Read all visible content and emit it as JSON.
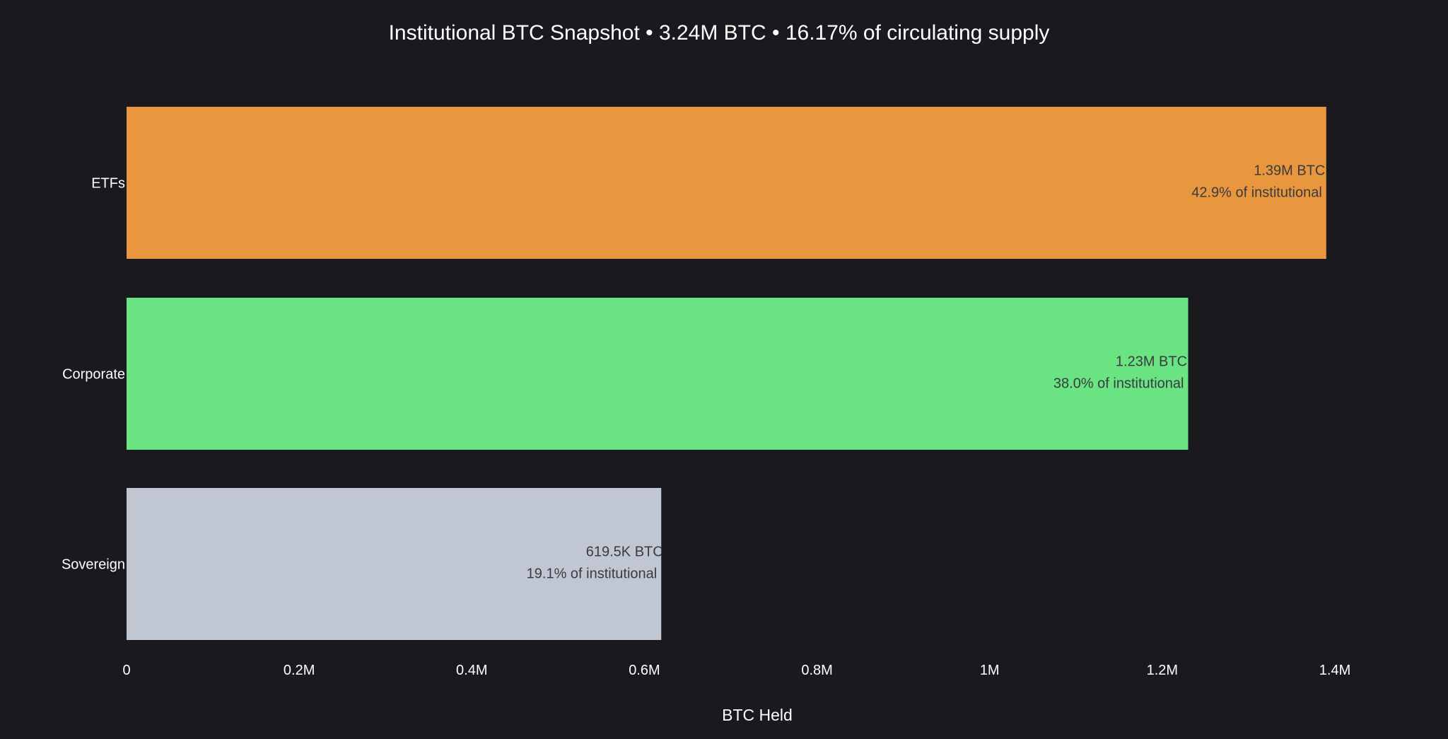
{
  "chart_data": {
    "type": "bar",
    "orientation": "horizontal",
    "title": "Institutional BTC Snapshot • 3.24M BTC • 16.17% of circulating supply",
    "xlabel": "BTC Held",
    "ylabel": "",
    "xlim": [
      0,
      1400000
    ],
    "grid": false,
    "legend": "none",
    "categories": [
      "ETFs",
      "Corporate",
      "Sovereign"
    ],
    "values": [
      1390000,
      1230000,
      619500
    ],
    "colors": [
      "#e8973e",
      "#6ae383",
      "#c1c7d2"
    ],
    "value_labels": [
      "1.39M BTC",
      "1.23M BTC",
      "619.5K BTC"
    ],
    "share_labels": [
      "42.9% of institutional",
      "38.0% of institutional",
      "19.1% of institutional"
    ],
    "x_ticks": [
      {
        "value": 0,
        "label": "0"
      },
      {
        "value": 200000,
        "label": "0.2M"
      },
      {
        "value": 400000,
        "label": "0.4M"
      },
      {
        "value": 600000,
        "label": "0.6M"
      },
      {
        "value": 800000,
        "label": "0.8M"
      },
      {
        "value": 1000000,
        "label": "1M"
      },
      {
        "value": 1200000,
        "label": "1.2M"
      },
      {
        "value": 1400000,
        "label": "1.4M"
      }
    ]
  }
}
